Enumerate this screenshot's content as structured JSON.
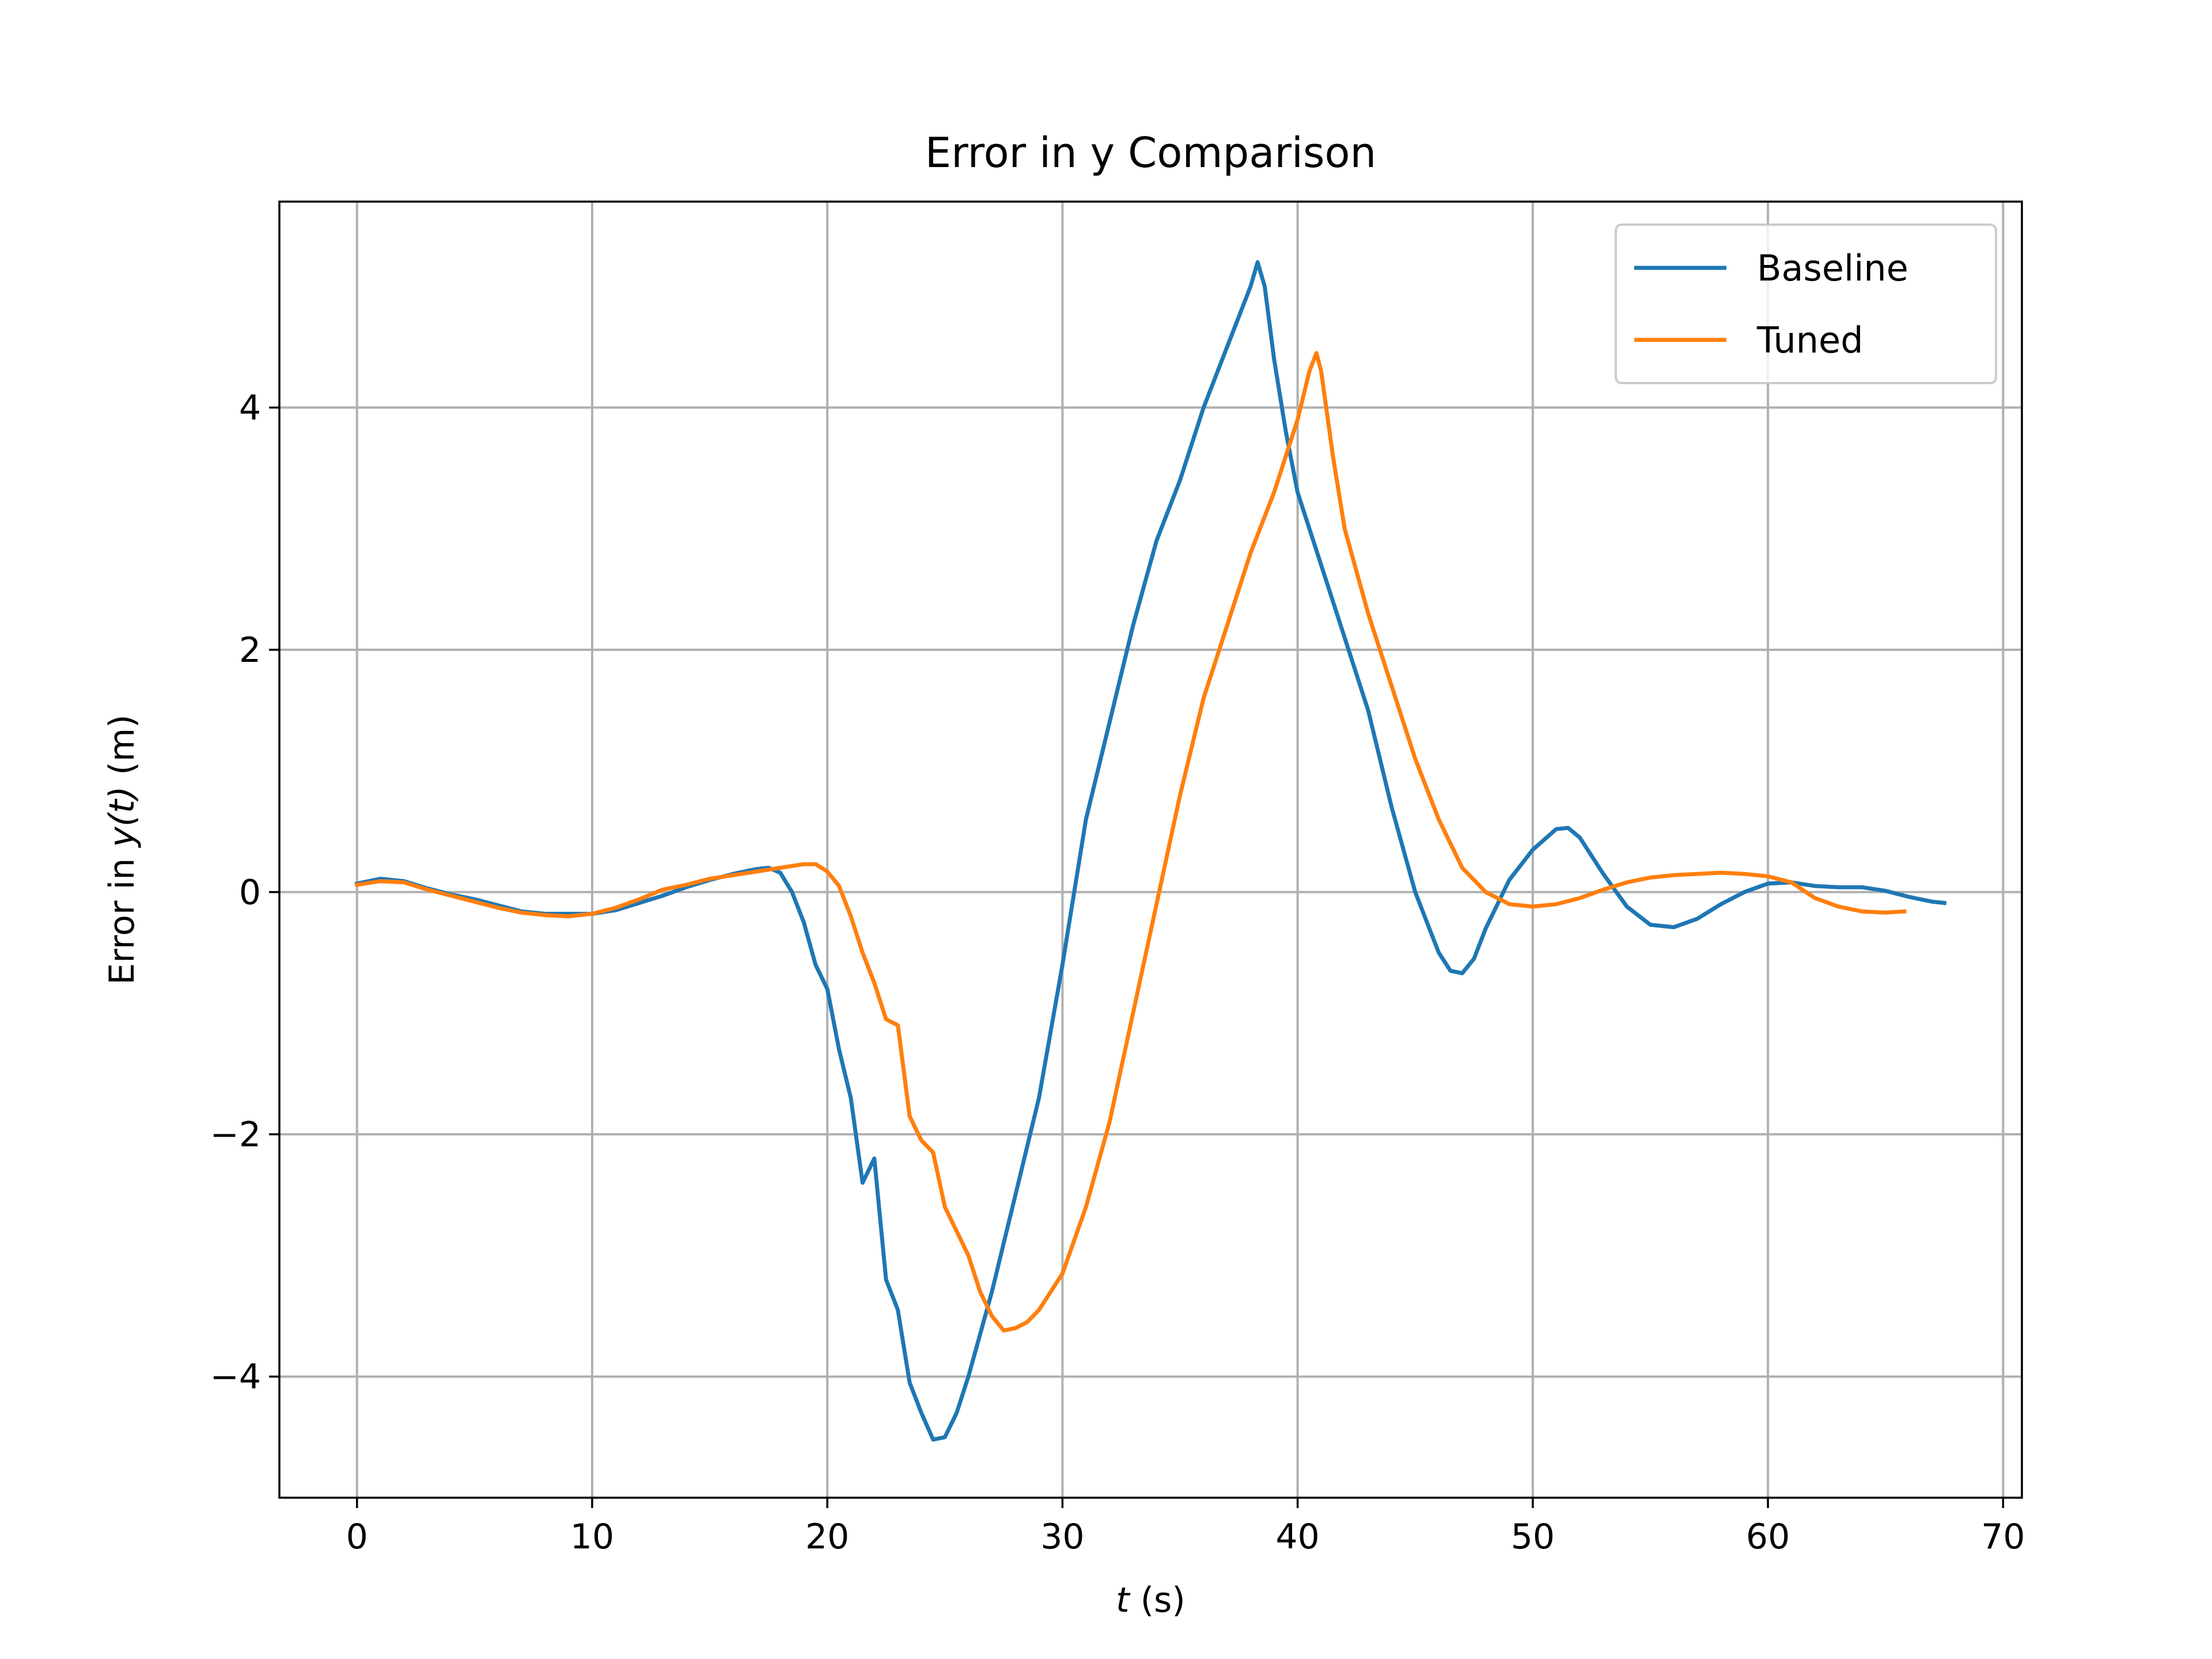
{
  "chart_data": {
    "type": "line",
    "title": "Error in y Comparison",
    "xlabel_var": "t",
    "xlabel_unit": " (s)",
    "ylabel_prefix": "Error in ",
    "ylabel_var_a": "y(",
    "ylabel_var_b": "t",
    "ylabel_var_c": ")",
    "ylabel_unit": " (m)",
    "xlim": [
      -3.3,
      70.8
    ],
    "ylim": [
      -5.0,
      5.7
    ],
    "xticks": [
      0,
      10,
      20,
      30,
      40,
      50,
      60,
      70
    ],
    "yticks": [
      -4,
      -2,
      0,
      2,
      4
    ],
    "xtick_labels": [
      "0",
      "10",
      "20",
      "30",
      "40",
      "50",
      "60",
      "70"
    ],
    "ytick_labels": [
      "−4",
      "−2",
      "0",
      "2",
      "4"
    ],
    "grid": true,
    "legend_position": "top-right",
    "series": [
      {
        "name": "Baseline",
        "color": "#1f77b4",
        "points": [
          [
            0,
            0.07
          ],
          [
            1,
            0.11
          ],
          [
            2,
            0.09
          ],
          [
            3,
            0.03
          ],
          [
            4,
            -0.02
          ],
          [
            5,
            -0.06
          ],
          [
            6,
            -0.11
          ],
          [
            7,
            -0.16
          ],
          [
            8,
            -0.18
          ],
          [
            9,
            -0.18
          ],
          [
            10,
            -0.18
          ],
          [
            11,
            -0.15
          ],
          [
            12,
            -0.09
          ],
          [
            13,
            -0.03
          ],
          [
            14,
            0.04
          ],
          [
            15,
            0.1
          ],
          [
            16,
            0.15
          ],
          [
            17,
            0.19
          ],
          [
            17.5,
            0.2
          ],
          [
            18,
            0.16
          ],
          [
            18.5,
            0.0
          ],
          [
            19,
            -0.25
          ],
          [
            19.5,
            -0.6
          ],
          [
            20,
            -0.8
          ],
          [
            20.5,
            -1.3
          ],
          [
            21,
            -1.7
          ],
          [
            21.5,
            -2.4
          ],
          [
            22,
            -2.2
          ],
          [
            22.5,
            -3.2
          ],
          [
            23,
            -3.45
          ],
          [
            23.5,
            -4.05
          ],
          [
            24,
            -4.3
          ],
          [
            24.5,
            -4.52
          ],
          [
            25,
            -4.5
          ],
          [
            25.5,
            -4.3
          ],
          [
            26,
            -4.0
          ],
          [
            27,
            -3.3
          ],
          [
            28,
            -2.5
          ],
          [
            29,
            -1.7
          ],
          [
            30,
            -0.6
          ],
          [
            31,
            0.6
          ],
          [
            32,
            1.4
          ],
          [
            33,
            2.2
          ],
          [
            34,
            2.9
          ],
          [
            35,
            3.4
          ],
          [
            36,
            4.0
          ],
          [
            37,
            4.5
          ],
          [
            38,
            5.0
          ],
          [
            38.3,
            5.2
          ],
          [
            38.6,
            5.0
          ],
          [
            39,
            4.4
          ],
          [
            39.5,
            3.8
          ],
          [
            40,
            3.3
          ],
          [
            41,
            2.7
          ],
          [
            42,
            2.1
          ],
          [
            43,
            1.5
          ],
          [
            44,
            0.7
          ],
          [
            45,
            0.0
          ],
          [
            46,
            -0.5
          ],
          [
            46.5,
            -0.65
          ],
          [
            47,
            -0.67
          ],
          [
            47.5,
            -0.55
          ],
          [
            48,
            -0.3
          ],
          [
            49,
            0.1
          ],
          [
            50,
            0.35
          ],
          [
            51,
            0.52
          ],
          [
            51.5,
            0.53
          ],
          [
            52,
            0.45
          ],
          [
            53,
            0.15
          ],
          [
            54,
            -0.12
          ],
          [
            55,
            -0.27
          ],
          [
            56,
            -0.29
          ],
          [
            57,
            -0.22
          ],
          [
            58,
            -0.1
          ],
          [
            59,
            0.0
          ],
          [
            60,
            0.07
          ],
          [
            61,
            0.08
          ],
          [
            62,
            0.05
          ],
          [
            63,
            0.04
          ],
          [
            64,
            0.04
          ],
          [
            65,
            0.01
          ],
          [
            66,
            -0.04
          ],
          [
            67,
            -0.08
          ],
          [
            67.5,
            -0.09
          ]
        ]
      },
      {
        "name": "Tuned",
        "color": "#ff7f0e",
        "points": [
          [
            0,
            0.06
          ],
          [
            1,
            0.09
          ],
          [
            2,
            0.08
          ],
          [
            3,
            0.02
          ],
          [
            4,
            -0.03
          ],
          [
            5,
            -0.08
          ],
          [
            6,
            -0.13
          ],
          [
            7,
            -0.17
          ],
          [
            8,
            -0.19
          ],
          [
            9,
            -0.2
          ],
          [
            10,
            -0.18
          ],
          [
            11,
            -0.13
          ],
          [
            12,
            -0.06
          ],
          [
            13,
            0.02
          ],
          [
            14,
            0.06
          ],
          [
            15,
            0.11
          ],
          [
            16,
            0.14
          ],
          [
            17,
            0.17
          ],
          [
            18,
            0.2
          ],
          [
            19,
            0.23
          ],
          [
            19.5,
            0.23
          ],
          [
            20,
            0.17
          ],
          [
            20.5,
            0.05
          ],
          [
            21,
            -0.2
          ],
          [
            21.5,
            -0.5
          ],
          [
            22,
            -0.75
          ],
          [
            22.5,
            -1.05
          ],
          [
            23,
            -1.1
          ],
          [
            23.5,
            -1.85
          ],
          [
            24,
            -2.05
          ],
          [
            24.5,
            -2.15
          ],
          [
            25,
            -2.6
          ],
          [
            25.5,
            -2.8
          ],
          [
            26,
            -3.0
          ],
          [
            26.5,
            -3.3
          ],
          [
            27,
            -3.5
          ],
          [
            27.5,
            -3.62
          ],
          [
            28,
            -3.6
          ],
          [
            28.5,
            -3.55
          ],
          [
            29,
            -3.45
          ],
          [
            30,
            -3.15
          ],
          [
            31,
            -2.6
          ],
          [
            32,
            -1.9
          ],
          [
            33,
            -1.0
          ],
          [
            34,
            -0.1
          ],
          [
            35,
            0.8
          ],
          [
            36,
            1.6
          ],
          [
            37,
            2.2
          ],
          [
            38,
            2.8
          ],
          [
            39,
            3.3
          ],
          [
            40,
            3.9
          ],
          [
            40.5,
            4.3
          ],
          [
            40.8,
            4.45
          ],
          [
            41,
            4.3
          ],
          [
            41.5,
            3.6
          ],
          [
            42,
            3.0
          ],
          [
            43,
            2.3
          ],
          [
            44,
            1.7
          ],
          [
            45,
            1.1
          ],
          [
            46,
            0.6
          ],
          [
            47,
            0.2
          ],
          [
            48,
            0.0
          ],
          [
            49,
            -0.1
          ],
          [
            50,
            -0.12
          ],
          [
            51,
            -0.1
          ],
          [
            52,
            -0.05
          ],
          [
            53,
            0.02
          ],
          [
            54,
            0.08
          ],
          [
            55,
            0.12
          ],
          [
            56,
            0.14
          ],
          [
            57,
            0.15
          ],
          [
            58,
            0.16
          ],
          [
            59,
            0.15
          ],
          [
            60,
            0.13
          ],
          [
            61,
            0.08
          ],
          [
            62,
            -0.05
          ],
          [
            63,
            -0.12
          ],
          [
            64,
            -0.16
          ],
          [
            65,
            -0.17
          ],
          [
            65.8,
            -0.16
          ]
        ]
      }
    ]
  }
}
